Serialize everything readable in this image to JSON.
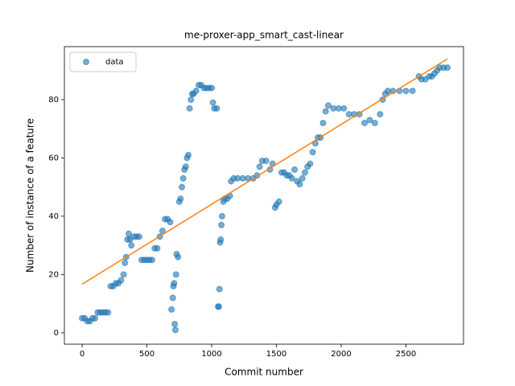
{
  "chart_data": {
    "type": "scatter",
    "title": "me-proxer-app_smart_cast-linear",
    "x_label": "Commit number",
    "y_label": "Number of instance of a feature",
    "xlim": [
      -137,
      2944
    ],
    "ylim": [
      -3.9,
      98.2
    ],
    "xticks": [
      0,
      500,
      1000,
      1500,
      2000,
      2500
    ],
    "yticks": [
      0,
      20,
      40,
      60,
      80
    ],
    "grid": false,
    "legend": "upper left",
    "series": [
      {
        "name": "data",
        "color": "#1f77b4",
        "kind": "points",
        "x": [
          0,
          20,
          40,
          60,
          80,
          100,
          120,
          140,
          160,
          180,
          200,
          220,
          240,
          260,
          280,
          300,
          320,
          330,
          340,
          350,
          360,
          370,
          380,
          400,
          420,
          440,
          460,
          480,
          500,
          520,
          540,
          560,
          580,
          600,
          620,
          640,
          660,
          680,
          690,
          700,
          705,
          710,
          715,
          720,
          725,
          730,
          740,
          750,
          760,
          770,
          780,
          790,
          800,
          810,
          820,
          830,
          840,
          850,
          860,
          880,
          900,
          920,
          940,
          960,
          980,
          1000,
          1010,
          1020,
          1040,
          1050,
          1055,
          1060,
          1065,
          1070,
          1075,
          1080,
          1090,
          1100,
          1120,
          1140,
          1150,
          1170,
          1200,
          1240,
          1280,
          1320,
          1350,
          1370,
          1390,
          1420,
          1450,
          1470,
          1490,
          1500,
          1520,
          1540,
          1560,
          1580,
          1600,
          1620,
          1640,
          1660,
          1680,
          1700,
          1720,
          1740,
          1760,
          1780,
          1800,
          1820,
          1840,
          1860,
          1880,
          1900,
          1940,
          1980,
          2020,
          2060,
          2100,
          2140,
          2180,
          2220,
          2260,
          2300,
          2320,
          2340,
          2360,
          2400,
          2450,
          2500,
          2550,
          2600,
          2620,
          2650,
          2680,
          2700,
          2720,
          2740,
          2760,
          2790,
          2820
        ],
        "values": [
          5,
          5,
          4,
          4,
          5,
          5,
          7,
          7,
          7,
          7,
          7,
          16,
          16,
          17,
          17,
          18,
          20,
          24,
          26,
          32,
          34,
          32,
          30,
          33,
          33,
          33,
          25,
          25,
          25,
          25,
          25,
          29,
          29,
          33,
          35,
          39,
          39,
          38,
          8,
          12,
          16,
          17,
          3,
          1,
          20,
          27,
          26,
          45,
          46,
          50,
          53,
          56,
          57,
          60,
          61,
          77,
          80,
          82,
          82,
          83,
          85,
          85,
          84,
          84,
          84,
          84,
          79,
          77,
          77,
          9,
          9,
          15,
          31,
          32,
          37,
          40,
          45,
          46,
          46,
          47,
          52,
          53,
          53,
          53,
          53,
          53,
          54,
          57,
          59,
          59,
          56,
          58,
          43,
          44,
          45,
          55,
          55,
          54,
          54,
          53,
          56,
          52,
          51,
          53,
          55,
          57,
          58,
          62,
          65,
          67,
          67,
          72,
          76,
          78,
          77,
          77,
          77,
          75,
          75,
          75,
          72,
          73,
          72,
          75,
          80,
          82,
          83,
          83,
          83,
          83,
          83,
          88,
          87,
          87,
          88,
          88,
          89,
          90,
          91,
          91,
          91
        ]
      },
      {
        "color": "#ff7f0e",
        "kind": "line",
        "x": [
          0,
          2820
        ],
        "values": [
          16.7,
          94
        ]
      }
    ]
  }
}
